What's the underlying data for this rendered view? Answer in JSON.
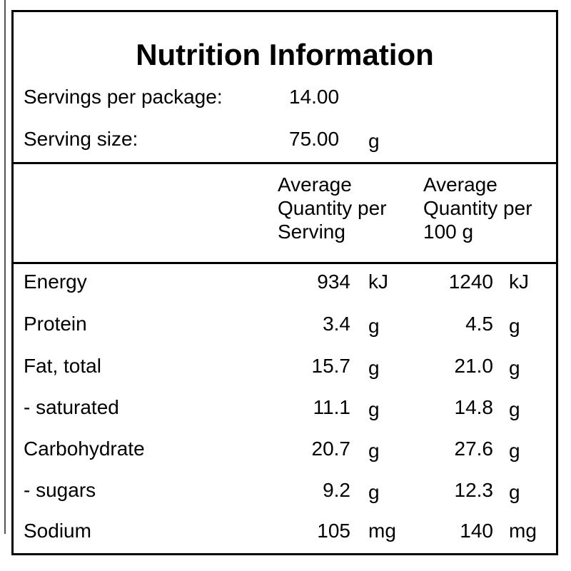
{
  "label": {
    "title": "Nutrition Information",
    "servings": {
      "label": "Servings per package:",
      "value": "14.00"
    },
    "serving_size": {
      "label": "Serving size:",
      "value": "75.00",
      "unit": "g"
    },
    "columns": {
      "per_serving": [
        "Average",
        "Quantity per",
        "Serving"
      ],
      "per_100g": [
        "Average",
        "Quantity per",
        "100 g"
      ]
    },
    "rows": [
      {
        "name": "Energy",
        "serving": "934",
        "serving_unit": "kJ",
        "per100": "1240",
        "per100_unit": "kJ"
      },
      {
        "name": "Protein",
        "serving": "3.4",
        "serving_unit": "g",
        "per100": "4.5",
        "per100_unit": "g"
      },
      {
        "name": "Fat, total",
        "serving": "15.7",
        "serving_unit": "g",
        "per100": "21.0",
        "per100_unit": "g"
      },
      {
        "name": "- saturated",
        "serving": "11.1",
        "serving_unit": "g",
        "per100": "14.8",
        "per100_unit": "g"
      },
      {
        "name": "Carbohydrate",
        "serving": "20.7",
        "serving_unit": "g",
        "per100": "27.6",
        "per100_unit": "g"
      },
      {
        "name": "- sugars",
        "serving": "9.2",
        "serving_unit": "g",
        "per100": "12.3",
        "per100_unit": "g"
      },
      {
        "name": "Sodium",
        "serving": "105",
        "serving_unit": "mg",
        "per100": "140",
        "per100_unit": "mg"
      }
    ]
  }
}
